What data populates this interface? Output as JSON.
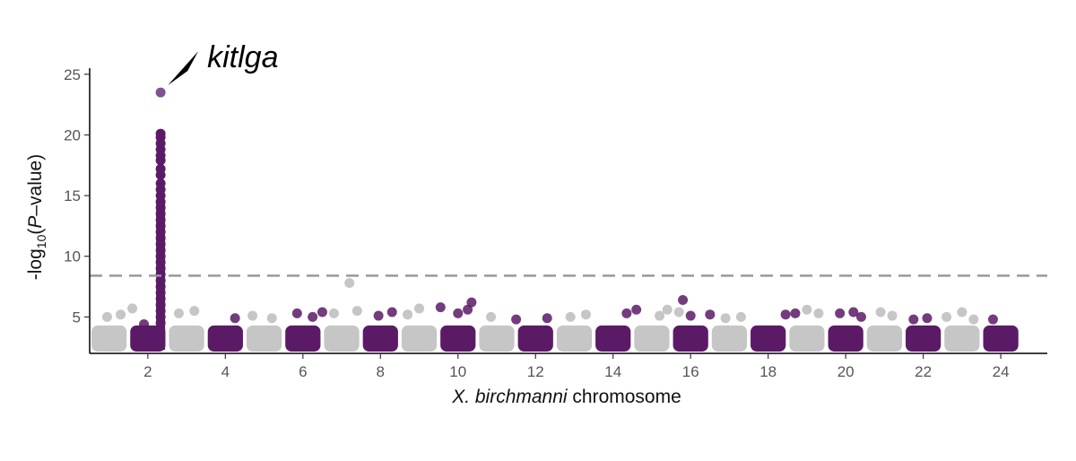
{
  "chart_data": {
    "type": "scatter",
    "title": "",
    "ylabel": {
      "prefix": "-log",
      "subscript": "10",
      "open": "(",
      "italic": "P",
      "suffix": "–value)"
    },
    "xlabel": {
      "italic": "X. birchmanni",
      "rest": " chromosome"
    },
    "ylim": [
      2,
      25.5
    ],
    "yticks": [
      5,
      10,
      15,
      20,
      25
    ],
    "xlim": [
      0.5,
      25.2
    ],
    "xticks": [
      2,
      4,
      6,
      8,
      10,
      12,
      14,
      16,
      18,
      20,
      22,
      24
    ],
    "threshold": 8.4,
    "grid": false,
    "legend": "none",
    "colors": {
      "odd": "#c6c6c6",
      "even": "#5b1a66",
      "peak": "#7e5290",
      "threshold": "#999999"
    },
    "chromosome_count": 24,
    "band_max": 4.3,
    "chromosomes": [
      {
        "chr": 1,
        "x": [
          0.95,
          1.3,
          1.6
        ],
        "y": [
          5.0,
          5.2,
          5.7
        ]
      },
      {
        "chr": 2,
        "x": [
          1.9
        ],
        "y": [
          4.4
        ]
      },
      {
        "chr": 3,
        "x": [
          2.8,
          3.2
        ],
        "y": [
          5.3,
          5.5
        ]
      },
      {
        "chr": 4,
        "x": [
          4.25
        ],
        "y": [
          4.9
        ]
      },
      {
        "chr": 5,
        "x": [
          4.7,
          5.2
        ],
        "y": [
          5.1,
          4.9
        ]
      },
      {
        "chr": 6,
        "x": [
          5.85,
          6.25,
          6.5
        ],
        "y": [
          5.3,
          5.0,
          5.4
        ]
      },
      {
        "chr": 7,
        "x": [
          6.8,
          7.2,
          7.4
        ],
        "y": [
          5.3,
          7.8,
          5.5
        ]
      },
      {
        "chr": 8,
        "x": [
          7.95,
          8.3
        ],
        "y": [
          5.1,
          5.4
        ]
      },
      {
        "chr": 9,
        "x": [
          8.7,
          9.0
        ],
        "y": [
          5.2,
          5.7
        ]
      },
      {
        "chr": 10,
        "x": [
          9.55,
          10.0,
          10.35,
          10.25
        ],
        "y": [
          5.8,
          5.3,
          6.2,
          5.6
        ]
      },
      {
        "chr": 11,
        "x": [
          10.85
        ],
        "y": [
          5.0
        ]
      },
      {
        "chr": 12,
        "x": [
          11.5,
          12.3
        ],
        "y": [
          4.8,
          4.9
        ]
      },
      {
        "chr": 13,
        "x": [
          12.9,
          13.3
        ],
        "y": [
          5.0,
          5.2
        ]
      },
      {
        "chr": 14,
        "x": [
          14.35,
          14.6
        ],
        "y": [
          5.3,
          5.6
        ]
      },
      {
        "chr": 15,
        "x": [
          15.2,
          15.4,
          15.7
        ],
        "y": [
          5.1,
          5.6,
          5.4
        ]
      },
      {
        "chr": 16,
        "x": [
          15.8,
          16.0,
          16.5
        ],
        "y": [
          6.4,
          5.1,
          5.2
        ]
      },
      {
        "chr": 17,
        "x": [
          16.9,
          17.3
        ],
        "y": [
          4.9,
          5.0
        ]
      },
      {
        "chr": 18,
        "x": [
          18.45,
          18.7
        ],
        "y": [
          5.2,
          5.3
        ]
      },
      {
        "chr": 19,
        "x": [
          19.0,
          19.3
        ],
        "y": [
          5.6,
          5.3
        ]
      },
      {
        "chr": 20,
        "x": [
          19.85,
          20.2,
          20.4
        ],
        "y": [
          5.3,
          5.4,
          5.0
        ]
      },
      {
        "chr": 21,
        "x": [
          20.9,
          21.2
        ],
        "y": [
          5.4,
          5.1
        ]
      },
      {
        "chr": 22,
        "x": [
          21.75,
          22.1
        ],
        "y": [
          4.8,
          4.9
        ]
      },
      {
        "chr": 23,
        "x": [
          22.6,
          23.0,
          23.3
        ],
        "y": [
          5.0,
          5.4,
          4.8
        ]
      },
      {
        "chr": 24,
        "x": [
          23.8
        ],
        "y": [
          4.8
        ]
      }
    ],
    "peak": {
      "chr": 2,
      "x": 2.33,
      "y": [
        4.5,
        5.0,
        5.5,
        6.0,
        6.5,
        7.0,
        7.5,
        8.0,
        8.5,
        9.0,
        9.5,
        10.0,
        10.5,
        11.0,
        11.5,
        12.0,
        12.5,
        13.0,
        13.5,
        14.0,
        14.5,
        15.0,
        15.5,
        16.0,
        16.7,
        17.2,
        17.9,
        18.3,
        18.8,
        19.3,
        19.8,
        20.1,
        23.5
      ]
    },
    "annotation": {
      "label": "kitlga",
      "x": 2.33,
      "y": 23.5
    }
  }
}
